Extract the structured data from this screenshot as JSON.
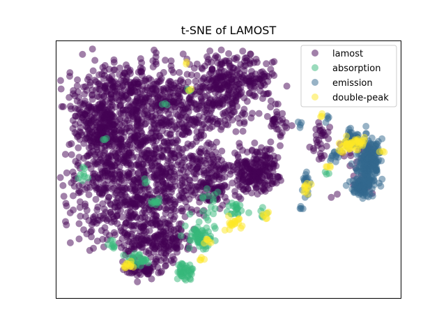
{
  "chart_data": {
    "type": "scatter",
    "title": "t-SNE of LAMOST",
    "xlabel": "",
    "ylabel": "",
    "axes_ticks": "none",
    "grid": false,
    "legend_position": "top-right",
    "marker_alpha": 0.5,
    "series": [
      {
        "name": "lamost",
        "color": "#440154"
      },
      {
        "name": "absorption",
        "color": "#35b779"
      },
      {
        "name": "emission",
        "color": "#31688e"
      },
      {
        "name": "double-peak",
        "color": "#fde725"
      }
    ]
  }
}
